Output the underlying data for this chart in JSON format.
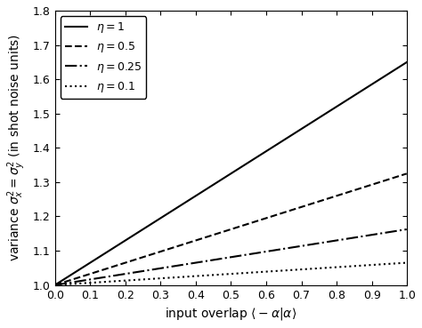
{
  "title": "",
  "xlabel": "input overlap $\\langle -\\alpha|\\alpha\\rangle$",
  "ylabel": "variance $\\sigma_x^2 = \\sigma_y^2$ (in shot noise units)",
  "xlim": [
    0,
    1.0
  ],
  "ylim": [
    1.0,
    1.8
  ],
  "xticks": [
    0,
    0.1,
    0.2,
    0.3,
    0.4,
    0.5,
    0.6,
    0.7,
    0.8,
    0.9,
    1.0
  ],
  "yticks": [
    1.0,
    1.1,
    1.2,
    1.3,
    1.4,
    1.5,
    1.6,
    1.7,
    1.8
  ],
  "eta_values": [
    1.0,
    0.5,
    0.25,
    0.1
  ],
  "eta_labels": [
    "$\\eta = 1$",
    "$\\eta = 0.5$",
    "$\\eta = 0.25$",
    "$\\eta = 0.1$"
  ],
  "linestyles": [
    "solid",
    "dashed",
    "dashdot",
    "dotted"
  ],
  "linewidths": [
    1.5,
    1.5,
    1.5,
    1.5
  ],
  "color": "#000000",
  "background_color": "#ffffff",
  "legend_loc": "upper left",
  "legend_fontsize": 9,
  "axis_fontsize": 10,
  "tick_fontsize": 9,
  "figsize": [
    4.74,
    3.69
  ],
  "dpi": 100,
  "formula_slope": 0.65
}
